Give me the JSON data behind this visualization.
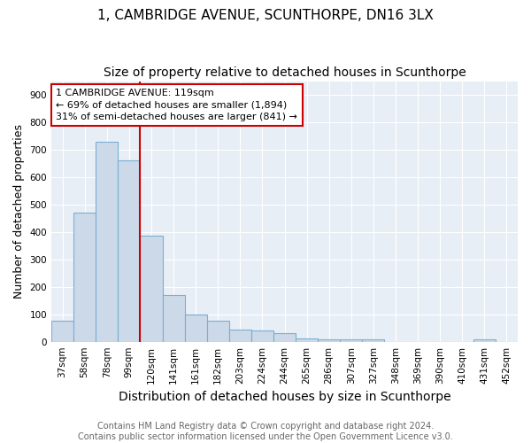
{
  "title": "1, CAMBRIDGE AVENUE, SCUNTHORPE, DN16 3LX",
  "subtitle": "Size of property relative to detached houses in Scunthorpe",
  "xlabel": "Distribution of detached houses by size in Scunthorpe",
  "ylabel": "Number of detached properties",
  "categories": [
    "37sqm",
    "58sqm",
    "78sqm",
    "99sqm",
    "120sqm",
    "141sqm",
    "161sqm",
    "182sqm",
    "203sqm",
    "224sqm",
    "244sqm",
    "265sqm",
    "286sqm",
    "307sqm",
    "327sqm",
    "348sqm",
    "369sqm",
    "390sqm",
    "410sqm",
    "431sqm",
    "452sqm"
  ],
  "values": [
    75,
    470,
    730,
    660,
    385,
    170,
    98,
    75,
    45,
    42,
    30,
    12,
    10,
    10,
    8,
    0,
    0,
    0,
    0,
    8,
    0
  ],
  "bar_color": "#ccd9e8",
  "bar_edge_color": "#7aafd4",
  "bar_edge_width": 0.8,
  "red_line_index": 4,
  "red_line_color": "#cc0000",
  "annotation_line1": "1 CAMBRIDGE AVENUE: 119sqm",
  "annotation_line2": "← 69% of detached houses are smaller (1,894)",
  "annotation_line3": "31% of semi-detached houses are larger (841) →",
  "annotation_box_color": "#cc0000",
  "footer_line1": "Contains HM Land Registry data © Crown copyright and database right 2024.",
  "footer_line2": "Contains public sector information licensed under the Open Government Licence v3.0.",
  "ylim": [
    0,
    950
  ],
  "yticks": [
    0,
    100,
    200,
    300,
    400,
    500,
    600,
    700,
    800,
    900
  ],
  "plot_bg_color": "#e8eef5",
  "fig_bg_color": "#ffffff",
  "grid_color": "#ffffff",
  "title_fontsize": 11,
  "subtitle_fontsize": 10,
  "xlabel_fontsize": 10,
  "ylabel_fontsize": 9,
  "tick_fontsize": 7.5,
  "footer_fontsize": 7,
  "annot_fontsize": 8
}
